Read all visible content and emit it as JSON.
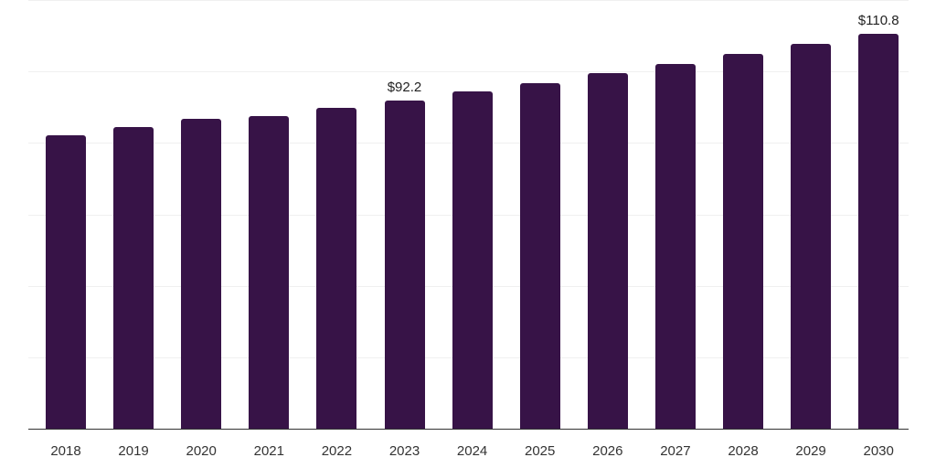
{
  "chart_data": {
    "type": "bar",
    "title": "",
    "xlabel": "",
    "ylabel": "",
    "categories": [
      "2018",
      "2019",
      "2020",
      "2021",
      "2022",
      "2023",
      "2024",
      "2025",
      "2026",
      "2027",
      "2028",
      "2029",
      "2030"
    ],
    "values": [
      82.3,
      84.7,
      87.0,
      87.7,
      90.0,
      92.2,
      94.6,
      96.9,
      99.7,
      102.3,
      105.1,
      107.9,
      110.8
    ],
    "data_labels": [
      {
        "category": "2023",
        "text": "$92.2"
      },
      {
        "category": "2030",
        "text": "$110.8"
      }
    ],
    "ylim": [
      0,
      120
    ],
    "gridlines": [
      0,
      20,
      40,
      60,
      80,
      100,
      120
    ],
    "grid": true,
    "legend": null,
    "bar_color": "#371347"
  }
}
